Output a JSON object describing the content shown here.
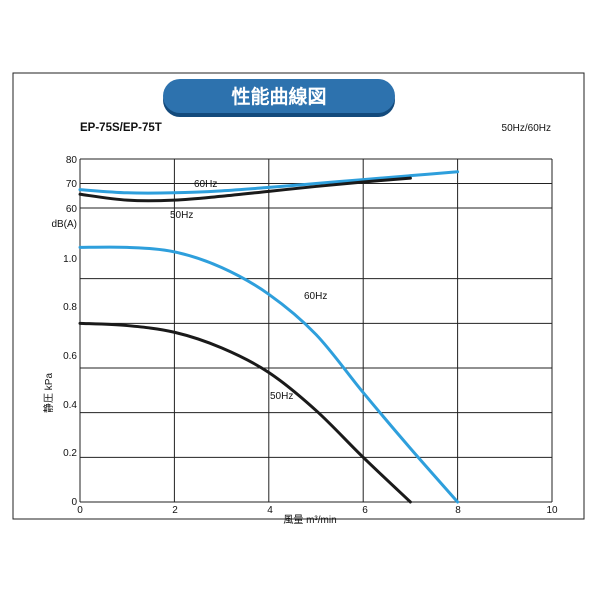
{
  "chart_data": {
    "type": "line",
    "title": "性能曲線図",
    "model": "EP-75S/EP-75T",
    "frequency_note": "50Hz/60Hz",
    "xlabel": "風量 m³/min",
    "ylabel": "静圧 kPa",
    "noise_axis_label": "dB(A)",
    "xlim": [
      0,
      10
    ],
    "ylim": [
      0,
      1.2
    ],
    "x_ticks": [
      "0",
      "2",
      "4",
      "6",
      "8",
      "10"
    ],
    "y_ticks": [
      "0",
      "0.2",
      "0.4",
      "0.6",
      "0.8",
      "1.0"
    ],
    "noise_ticks": [
      "80",
      "70",
      "60"
    ],
    "noise_range": [
      60,
      80
    ],
    "grid": true,
    "pressure_series": [
      {
        "name": "60Hz",
        "color": "#2e9fdc",
        "x": [
          0,
          1,
          2,
          3,
          4,
          5,
          6,
          7,
          8
        ],
        "y": [
          1.14,
          1.14,
          1.12,
          1.05,
          0.93,
          0.75,
          0.49,
          0.24,
          0.0
        ]
      },
      {
        "name": "50Hz",
        "color": "#1a1a1a",
        "x": [
          0,
          1,
          2,
          3,
          4,
          5,
          6,
          7
        ],
        "y": [
          0.8,
          0.79,
          0.76,
          0.69,
          0.58,
          0.41,
          0.2,
          0.0
        ]
      }
    ],
    "noise_series": [
      {
        "name": "60Hz",
        "color": "#2e9fdc",
        "x": [
          0,
          1,
          2,
          3,
          4,
          5,
          6,
          7,
          8
        ],
        "y": [
          67.5,
          66.2,
          66.2,
          67.0,
          68.4,
          70.0,
          71.6,
          73.2,
          74.8
        ]
      },
      {
        "name": "50Hz",
        "color": "#1a1a1a",
        "x": [
          0,
          1,
          2,
          3,
          4,
          5,
          6,
          7
        ],
        "y": [
          65.6,
          63.2,
          63.2,
          64.8,
          66.8,
          68.8,
          70.6,
          72.2
        ]
      }
    ]
  }
}
